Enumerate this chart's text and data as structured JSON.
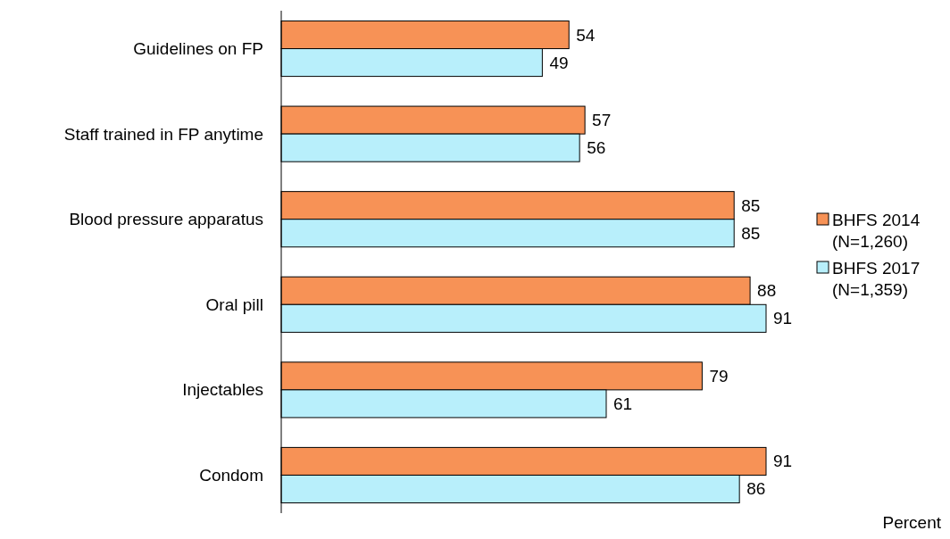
{
  "chart_data": {
    "type": "bar",
    "orientation": "horizontal",
    "annotations": [
      "Percent"
    ],
    "categories": [
      "Guidelines on FP",
      "Staff trained in FP anytime",
      "Blood pressure apparatus",
      "Oral pill",
      "Injectables",
      "Condom"
    ],
    "series": [
      {
        "name": "BHFS 2014\n(N=1,260)",
        "color": "#f79256",
        "values": [
          54,
          57,
          85,
          88,
          79,
          91
        ]
      },
      {
        "name": "BHFS 2017\n(N=1,359)",
        "color": "#b8effb",
        "values": [
          49,
          56,
          85,
          91,
          61,
          86
        ]
      }
    ],
    "data_labels": true,
    "legend": "right"
  }
}
